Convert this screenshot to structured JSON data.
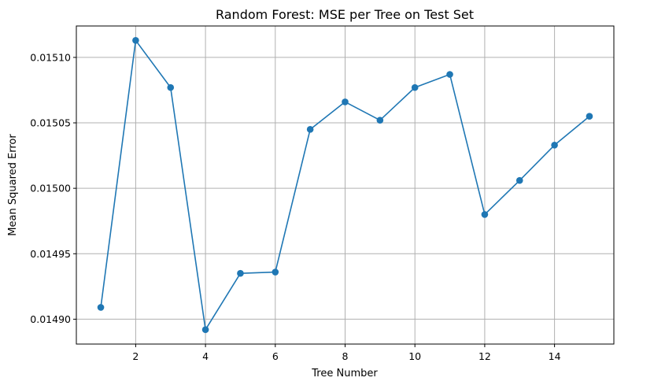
{
  "chart_data": {
    "type": "line",
    "title": "Random Forest: MSE per Tree on Test Set",
    "xlabel": "Tree Number",
    "ylabel": "Mean Squared Error",
    "x": [
      1,
      2,
      3,
      4,
      5,
      6,
      7,
      8,
      9,
      10,
      11,
      12,
      13,
      14,
      15
    ],
    "series": [
      {
        "values": [
          0.014909,
          0.015113,
          0.015077,
          0.014892,
          0.014935,
          0.014936,
          0.015045,
          0.015066,
          0.015052,
          0.015077,
          0.015087,
          0.01498,
          0.015006,
          0.015033,
          0.015055
        ],
        "color": "#1f77b4",
        "marker": "circle"
      }
    ],
    "xlim": [
      0.3,
      15.7
    ],
    "ylim": [
      0.014881,
      0.015124
    ],
    "xticks": [
      2,
      4,
      6,
      8,
      10,
      12,
      14
    ],
    "xtick_labels": [
      "2",
      "4",
      "6",
      "8",
      "10",
      "12",
      "14"
    ],
    "yticks": [
      0.0149,
      0.01495,
      0.015,
      0.01505,
      0.0151
    ],
    "ytick_labels": [
      "0.01490",
      "0.01495",
      "0.01500",
      "0.01505",
      "0.01510"
    ],
    "grid": true,
    "legend": false
  }
}
